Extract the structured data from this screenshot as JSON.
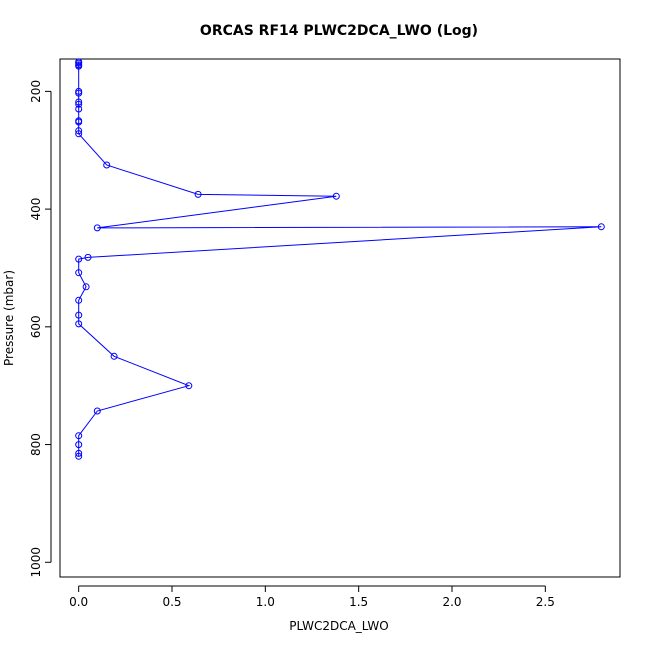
{
  "chart_data": {
    "type": "line",
    "title": "ORCAS RF14 PLWC2DCA_LWO (Log)",
    "xlabel": "PLWC2DCA_LWO",
    "ylabel": "Pressure (mbar)",
    "xlim": [
      -0.1,
      2.9
    ],
    "ylim": [
      1025,
      145
    ],
    "y_inverted": true,
    "xticks": [
      0,
      0.5,
      1,
      1.5,
      2,
      2.5
    ],
    "xtick_labels": [
      "0.0",
      "0.5",
      "1.0",
      "1.5",
      "2.0",
      "2.5"
    ],
    "yticks": [
      200,
      400,
      600,
      800,
      1000
    ],
    "ytick_labels": [
      "200",
      "400",
      "600",
      "800",
      "1000"
    ],
    "grid": false,
    "colors": {
      "series": "#0000ff",
      "axes": "#000000",
      "background": "#ffffff"
    },
    "series": [
      {
        "marker": "open-circle",
        "points": [
          [
            0,
            150
          ],
          [
            0,
            152
          ],
          [
            0,
            155
          ],
          [
            0,
            157
          ],
          [
            0,
            200
          ],
          [
            0,
            203
          ],
          [
            0,
            218
          ],
          [
            0,
            222
          ],
          [
            0,
            230
          ],
          [
            0,
            250
          ],
          [
            0,
            252
          ],
          [
            0,
            267
          ],
          [
            0,
            272
          ],
          [
            0.15,
            325
          ],
          [
            0.64,
            375
          ],
          [
            1.38,
            378
          ],
          [
            0.1,
            432
          ],
          [
            2.8,
            430
          ],
          [
            0.05,
            482
          ],
          [
            0,
            485
          ],
          [
            0,
            508
          ],
          [
            0.04,
            532
          ],
          [
            0,
            555
          ],
          [
            0,
            580
          ],
          [
            0,
            595
          ],
          [
            0.19,
            650
          ],
          [
            0.59,
            700
          ],
          [
            0.1,
            743
          ],
          [
            0,
            785
          ],
          [
            0,
            800
          ],
          [
            0,
            815
          ],
          [
            0,
            820
          ]
        ]
      }
    ]
  }
}
